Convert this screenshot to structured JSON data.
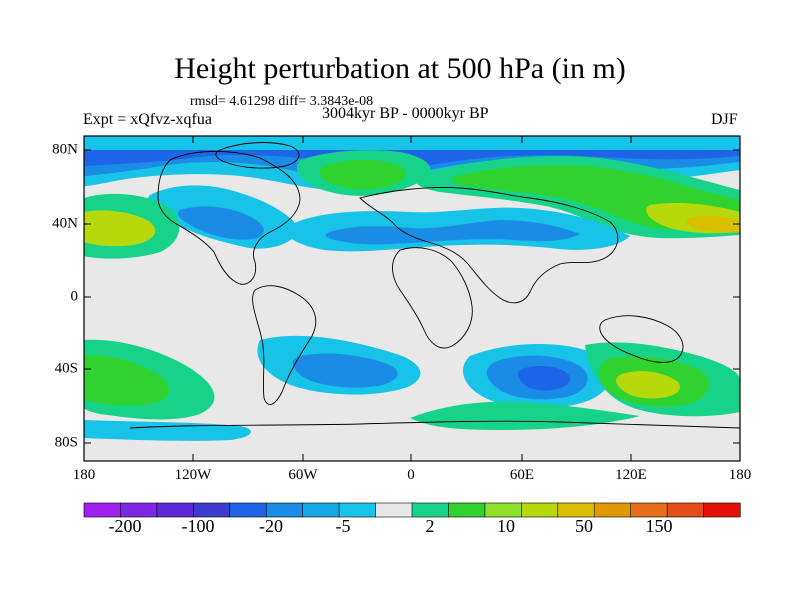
{
  "title": "Height perturbation at 500 hPa (in m)",
  "stats_line": "rmsd= 4.61298 diff= 3.3843e-08",
  "experiment": "Expt = xQfvz-xqfua",
  "period": "3004kyr BP - 0000kyr BP",
  "season": "DJF",
  "lat_ticks": [
    "80N",
    "40N",
    "0",
    "40S",
    "80S"
  ],
  "lon_ticks": [
    "180",
    "120W",
    "60W",
    "0",
    "60E",
    "120E",
    "180"
  ],
  "colorbar": {
    "colors": [
      "#a020f0",
      "#7d28e6",
      "#5a2ad8",
      "#3c3ccd",
      "#1e64e6",
      "#1a8ce6",
      "#17a6e6",
      "#17c3e6",
      "#e8e8e8",
      "#17d38a",
      "#30d230",
      "#8ede2c",
      "#b7d80b",
      "#d8c000",
      "#e09a00",
      "#e66e1a",
      "#e64c1a",
      "#e60f0a"
    ],
    "labels": [
      "-200",
      "-100",
      "-20",
      "-5",
      "2",
      "10",
      "50",
      "150"
    ]
  },
  "field_palette": {
    "neutral": "#e8e8e8",
    "neg1": "#17c3e6",
    "neg2": "#1a8ce6",
    "neg3": "#1e64e6",
    "pos1": "#17d38a",
    "pos2": "#30d230",
    "pos3": "#b7d80b",
    "pos4": "#d8c000"
  }
}
